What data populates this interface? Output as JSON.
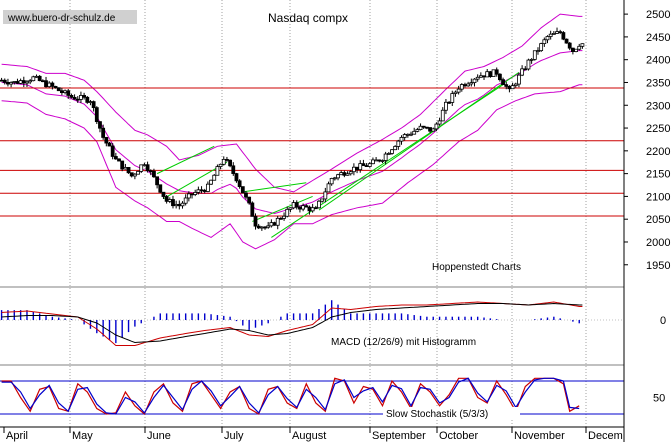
{
  "chart_data": [
    {
      "type": "candlestick",
      "title": "Nasdaq compx",
      "watermark": "www.buero-dr-schulz.de",
      "source_label": "Hoppenstedt Charts",
      "ylim": [
        1910,
        2520
      ],
      "yticks": [
        1950,
        2000,
        2050,
        2100,
        2150,
        2200,
        2250,
        2300,
        2350,
        2400,
        2450,
        2500
      ],
      "months": [
        "April",
        "May",
        "June",
        "July",
        "August",
        "September",
        "October",
        "November",
        "Decem"
      ],
      "horizontal_levels": [
        2338,
        2222,
        2157,
        2107,
        2057
      ],
      "price_path": [
        [
          0,
          2355
        ],
        [
          4,
          2350
        ],
        [
          10,
          2360
        ],
        [
          16,
          2340
        ],
        [
          22,
          2318
        ],
        [
          28,
          2312
        ],
        [
          32,
          2230
        ],
        [
          36,
          2180
        ],
        [
          41,
          2145
        ],
        [
          45,
          2175
        ],
        [
          48,
          2140
        ],
        [
          52,
          2090
        ],
        [
          56,
          2080
        ],
        [
          60,
          2105
        ],
        [
          65,
          2120
        ],
        [
          70,
          2185
        ],
        [
          74,
          2140
        ],
        [
          78,
          2080
        ],
        [
          80,
          2040
        ],
        [
          84,
          2030
        ],
        [
          88,
          2055
        ],
        [
          92,
          2080
        ],
        [
          96,
          2075
        ],
        [
          99,
          2070
        ],
        [
          104,
          2140
        ],
        [
          110,
          2160
        ],
        [
          116,
          2170
        ],
        [
          120,
          2185
        ],
        [
          126,
          2230
        ],
        [
          132,
          2250
        ],
        [
          136,
          2245
        ],
        [
          140,
          2300
        ],
        [
          144,
          2340
        ],
        [
          150,
          2365
        ],
        [
          156,
          2372
        ],
        [
          160,
          2330
        ],
        [
          166,
          2395
        ],
        [
          172,
          2450
        ],
        [
          176,
          2460
        ],
        [
          180,
          2420
        ],
        [
          182,
          2435
        ]
      ],
      "bollinger_upper": [
        [
          0,
          2390
        ],
        [
          8,
          2385
        ],
        [
          14,
          2370
        ],
        [
          20,
          2370
        ],
        [
          26,
          2355
        ],
        [
          30,
          2330
        ],
        [
          36,
          2285
        ],
        [
          42,
          2245
        ],
        [
          46,
          2235
        ],
        [
          52,
          2210
        ],
        [
          56,
          2180
        ],
        [
          62,
          2190
        ],
        [
          68,
          2210
        ],
        [
          74,
          2215
        ],
        [
          80,
          2160
        ],
        [
          86,
          2120
        ],
        [
          92,
          2110
        ],
        [
          98,
          2135
        ],
        [
          104,
          2160
        ],
        [
          112,
          2195
        ],
        [
          120,
          2225
        ],
        [
          126,
          2250
        ],
        [
          132,
          2280
        ],
        [
          140,
          2335
        ],
        [
          146,
          2375
        ],
        [
          152,
          2385
        ],
        [
          158,
          2405
        ],
        [
          164,
          2430
        ],
        [
          170,
          2470
        ],
        [
          176,
          2500
        ],
        [
          182,
          2495
        ]
      ],
      "bollinger_lower": [
        [
          0,
          2310
        ],
        [
          8,
          2305
        ],
        [
          14,
          2280
        ],
        [
          20,
          2270
        ],
        [
          26,
          2250
        ],
        [
          30,
          2220
        ],
        [
          36,
          2120
        ],
        [
          42,
          2090
        ],
        [
          46,
          2075
        ],
        [
          52,
          2045
        ],
        [
          56,
          2045
        ],
        [
          60,
          2030
        ],
        [
          66,
          2010
        ],
        [
          72,
          2040
        ],
        [
          76,
          2000
        ],
        [
          80,
          1985
        ],
        [
          86,
          2005
        ],
        [
          92,
          2040
        ],
        [
          98,
          2040
        ],
        [
          104,
          2060
        ],
        [
          112,
          2075
        ],
        [
          120,
          2085
        ],
        [
          128,
          2130
        ],
        [
          136,
          2170
        ],
        [
          144,
          2220
        ],
        [
          150,
          2245
        ],
        [
          156,
          2290
        ],
        [
          162,
          2310
        ],
        [
          168,
          2325
        ],
        [
          176,
          2330
        ],
        [
          182,
          2345
        ]
      ],
      "trend_lines": [
        [
          [
            49,
            2150
          ],
          [
            67,
            2210
          ]
        ],
        [
          [
            51,
            2095
          ],
          [
            71,
            2175
          ]
        ],
        [
          [
            76,
            2110
          ],
          [
            96,
            2130
          ]
        ],
        [
          [
            79,
            2045
          ],
          [
            98,
            2100
          ]
        ],
        [
          [
            85,
            2010
          ],
          [
            158,
            2345
          ]
        ],
        [
          [
            100,
            2070
          ],
          [
            163,
            2372
          ]
        ]
      ]
    },
    {
      "type": "line",
      "title": "MACD (12/26/9) mit Histogramm",
      "yticks": [
        0
      ],
      "ylim": [
        -1,
        1
      ],
      "series": [
        {
          "color": "#cc0000",
          "values": [
            [
              0,
              0.25
            ],
            [
              8,
              0.3
            ],
            [
              16,
              0.2
            ],
            [
              24,
              0.1
            ],
            [
              30,
              -0.3
            ],
            [
              36,
              -0.85
            ],
            [
              42,
              -0.85
            ],
            [
              50,
              -0.6
            ],
            [
              58,
              -0.45
            ],
            [
              64,
              -0.35
            ],
            [
              72,
              -0.25
            ],
            [
              78,
              -0.5
            ],
            [
              84,
              -0.55
            ],
            [
              90,
              -0.35
            ],
            [
              98,
              -0.15
            ],
            [
              104,
              0.4
            ],
            [
              110,
              0.35
            ],
            [
              118,
              0.45
            ],
            [
              126,
              0.5
            ],
            [
              134,
              0.5
            ],
            [
              142,
              0.55
            ],
            [
              150,
              0.6
            ],
            [
              158,
              0.55
            ],
            [
              166,
              0.5
            ],
            [
              174,
              0.6
            ],
            [
              182,
              0.45
            ]
          ]
        },
        {
          "color": "#000000",
          "values": [
            [
              0,
              0.1
            ],
            [
              8,
              0.15
            ],
            [
              16,
              0.15
            ],
            [
              24,
              0.1
            ],
            [
              30,
              -0.1
            ],
            [
              36,
              -0.5
            ],
            [
              42,
              -0.75
            ],
            [
              50,
              -0.7
            ],
            [
              58,
              -0.55
            ],
            [
              64,
              -0.45
            ],
            [
              72,
              -0.3
            ],
            [
              78,
              -0.35
            ],
            [
              84,
              -0.5
            ],
            [
              90,
              -0.45
            ],
            [
              98,
              -0.25
            ],
            [
              104,
              0.1
            ],
            [
              110,
              0.25
            ],
            [
              118,
              0.35
            ],
            [
              126,
              0.4
            ],
            [
              134,
              0.45
            ],
            [
              142,
              0.5
            ],
            [
              150,
              0.55
            ],
            [
              158,
              0.55
            ],
            [
              166,
              0.5
            ],
            [
              174,
              0.55
            ],
            [
              182,
              0.5
            ]
          ]
        }
      ]
    },
    {
      "type": "line",
      "title": "Slow Stochastik (5/3/3)",
      "yticks": [
        50
      ],
      "ylim": [
        0,
        100
      ],
      "bands": [
        80,
        20
      ],
      "series": [
        {
          "color": "#cc0000",
          "values": [
            [
              0,
              80
            ],
            [
              3,
              80
            ],
            [
              6,
              50
            ],
            [
              9,
              25
            ],
            [
              12,
              65
            ],
            [
              15,
              70
            ],
            [
              18,
              30
            ],
            [
              21,
              25
            ],
            [
              24,
              75
            ],
            [
              27,
              60
            ],
            [
              30,
              30
            ],
            [
              33,
              20
            ],
            [
              36,
              22
            ],
            [
              39,
              60
            ],
            [
              42,
              35
            ],
            [
              45,
              20
            ],
            [
              48,
              60
            ],
            [
              51,
              75
            ],
            [
              54,
              40
            ],
            [
              57,
              25
            ],
            [
              60,
              75
            ],
            [
              63,
              80
            ],
            [
              66,
              55
            ],
            [
              69,
              30
            ],
            [
              72,
              60
            ],
            [
              75,
              70
            ],
            [
              78,
              30
            ],
            [
              81,
              20
            ],
            [
              84,
              65
            ],
            [
              87,
              70
            ],
            [
              90,
              40
            ],
            [
              93,
              30
            ],
            [
              96,
              75
            ],
            [
              99,
              40
            ],
            [
              102,
              25
            ],
            [
              105,
              85
            ],
            [
              108,
              80
            ],
            [
              111,
              40
            ],
            [
              114,
              70
            ],
            [
              117,
              65
            ],
            [
              120,
              35
            ],
            [
              123,
              80
            ],
            [
              126,
              60
            ],
            [
              129,
              30
            ],
            [
              132,
              75
            ],
            [
              135,
              60
            ],
            [
              138,
              35
            ],
            [
              141,
              55
            ],
            [
              144,
              85
            ],
            [
              147,
              85
            ],
            [
              150,
              50
            ],
            [
              153,
              40
            ],
            [
              156,
              80
            ],
            [
              159,
              55
            ],
            [
              162,
              25
            ],
            [
              165,
              70
            ],
            [
              168,
              85
            ],
            [
              171,
              85
            ],
            [
              174,
              85
            ],
            [
              177,
              75
            ],
            [
              179,
              25
            ],
            [
              182,
              35
            ]
          ]
        },
        {
          "color": "#0000cc",
          "values": [
            [
              0,
              78
            ],
            [
              3,
              78
            ],
            [
              6,
              60
            ],
            [
              9,
              30
            ],
            [
              12,
              55
            ],
            [
              15,
              72
            ],
            [
              18,
              40
            ],
            [
              21,
              25
            ],
            [
              24,
              65
            ],
            [
              27,
              68
            ],
            [
              30,
              38
            ],
            [
              33,
              22
            ],
            [
              36,
              20
            ],
            [
              39,
              50
            ],
            [
              42,
              42
            ],
            [
              45,
              22
            ],
            [
              48,
              50
            ],
            [
              51,
              72
            ],
            [
              54,
              50
            ],
            [
              57,
              28
            ],
            [
              60,
              65
            ],
            [
              63,
              80
            ],
            [
              66,
              62
            ],
            [
              69,
              35
            ],
            [
              72,
              52
            ],
            [
              75,
              70
            ],
            [
              78,
              40
            ],
            [
              81,
              22
            ],
            [
              84,
              55
            ],
            [
              87,
              70
            ],
            [
              90,
              48
            ],
            [
              93,
              32
            ],
            [
              96,
              65
            ],
            [
              99,
              50
            ],
            [
              102,
              28
            ],
            [
              105,
              75
            ],
            [
              108,
              82
            ],
            [
              111,
              50
            ],
            [
              114,
              62
            ],
            [
              117,
              68
            ],
            [
              120,
              42
            ],
            [
              123,
              72
            ],
            [
              126,
              66
            ],
            [
              129,
              35
            ],
            [
              132,
              68
            ],
            [
              135,
              65
            ],
            [
              138,
              40
            ],
            [
              141,
              50
            ],
            [
              144,
              78
            ],
            [
              147,
              85
            ],
            [
              150,
              58
            ],
            [
              153,
              42
            ],
            [
              156,
              72
            ],
            [
              159,
              62
            ],
            [
              162,
              32
            ],
            [
              165,
              60
            ],
            [
              168,
              82
            ],
            [
              171,
              85
            ],
            [
              174,
              85
            ],
            [
              177,
              80
            ],
            [
              179,
              32
            ],
            [
              182,
              30
            ]
          ]
        }
      ]
    }
  ]
}
